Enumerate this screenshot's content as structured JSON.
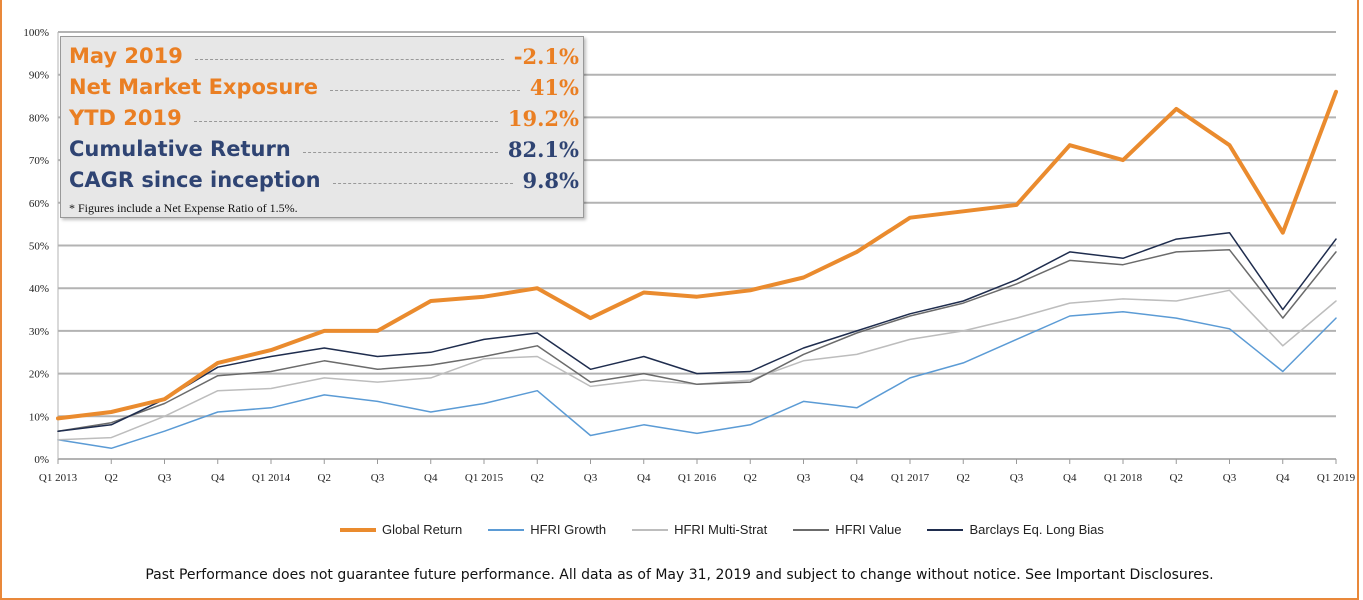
{
  "stats": {
    "rows": [
      {
        "label": "May 2019",
        "value": "-2.1%"
      },
      {
        "label": "Net Market Exposure",
        "value": "41%"
      },
      {
        "label": "YTD 2019",
        "value": "19.2%"
      },
      {
        "label": "Cumulative Return",
        "value": "82.1%"
      },
      {
        "label": "CAGR since inception",
        "value": "9.8%"
      }
    ],
    "note": "* Figures include a Net Expense Ratio of 1.5%."
  },
  "footer": "Past Performance does not guarantee future performance. All data as of May 31, 2019 and subject to change without notice. See Important Disclosures.",
  "colors": {
    "orange": "#ea7f23",
    "navy": "#2f4473"
  },
  "chart_data": {
    "type": "line",
    "title": "",
    "xlabel": "",
    "ylabel": "",
    "ylim": [
      0,
      100
    ],
    "yticks": [
      "0%",
      "10%",
      "20%",
      "30%",
      "40%",
      "50%",
      "60%",
      "70%",
      "80%",
      "90%",
      "100%"
    ],
    "grid": true,
    "legend_position": "bottom",
    "categories": [
      "Q1 2013",
      "Q2",
      "Q3",
      "Q4",
      "Q1 2014",
      "Q2",
      "Q3",
      "Q4",
      "Q1 2015",
      "Q2",
      "Q3",
      "Q4",
      "Q1 2016",
      "Q2",
      "Q3",
      "Q4",
      "Q1 2017",
      "Q2",
      "Q3",
      "Q4",
      "Q1 2018",
      "Q2",
      "Q3",
      "Q4",
      "Q1 2019"
    ],
    "series": [
      {
        "name": "Global Return",
        "color": "#ea8b2e",
        "width": 4,
        "values": [
          9.5,
          11,
          14,
          22.5,
          25.5,
          30,
          30,
          37,
          38,
          40,
          33,
          39,
          38,
          39.5,
          42.5,
          48.5,
          56.5,
          58,
          59.5,
          73.5,
          70,
          82,
          73.5,
          53,
          86
        ]
      },
      {
        "name": "HFRI Growth",
        "color": "#5b9bd5",
        "width": 1.5,
        "values": [
          4.5,
          2.5,
          6.5,
          11,
          12,
          15,
          13.5,
          11,
          13,
          16,
          5.5,
          8,
          6,
          8,
          13.5,
          12,
          19,
          22.5,
          28,
          33.5,
          34.5,
          33,
          30.5,
          20.5,
          33
        ]
      },
      {
        "name": "HFRI Multi-Strat",
        "color": "#bdbdbd",
        "width": 1.5,
        "values": [
          4.5,
          5,
          10,
          16,
          16.5,
          19,
          18,
          19,
          23.5,
          24,
          17,
          18.5,
          17.5,
          18.5,
          23,
          24.5,
          28,
          30,
          33,
          36.5,
          37.5,
          37,
          39.5,
          26.5,
          37
        ]
      },
      {
        "name": "HFRI Value",
        "color": "#6b6b6b",
        "width": 1.5,
        "values": [
          6.5,
          8.5,
          13,
          19.5,
          20.5,
          23,
          21,
          22,
          24,
          26.5,
          18,
          20,
          17.5,
          18,
          24.5,
          29.5,
          33.5,
          36.5,
          41,
          46.5,
          45.5,
          48.5,
          49,
          33,
          48.5
        ]
      },
      {
        "name": "Barclays Eq. Long Bias",
        "color": "#1f2d4e",
        "width": 1.5,
        "values": [
          6.5,
          8,
          14,
          21.5,
          24,
          26,
          24,
          25,
          28,
          29.5,
          21,
          24,
          20,
          20.5,
          26,
          30,
          34,
          37,
          42,
          48.5,
          47,
          51.5,
          53,
          35,
          51.5
        ]
      }
    ]
  }
}
